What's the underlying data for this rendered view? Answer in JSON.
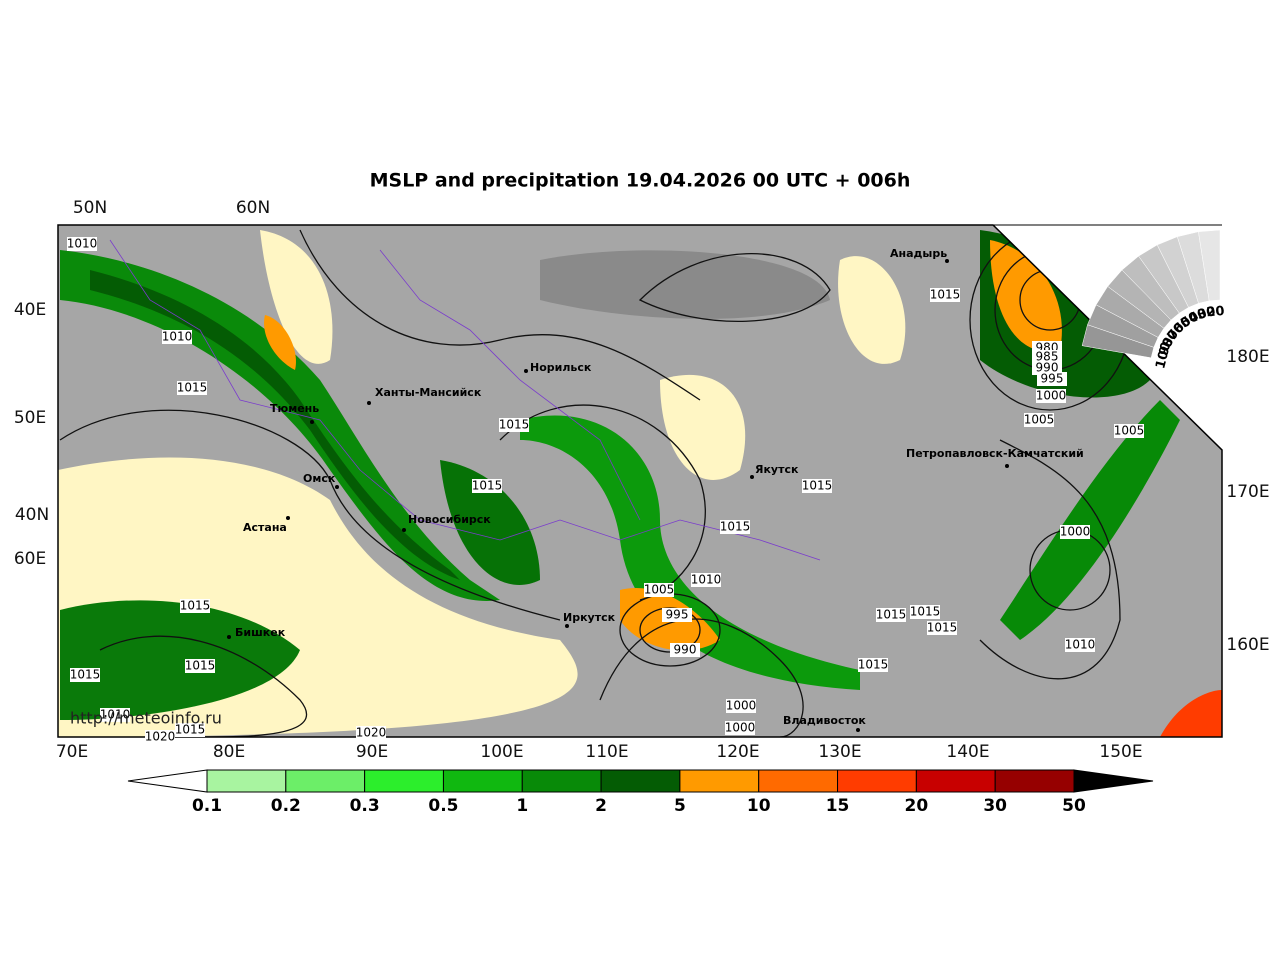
{
  "title": "MSLP and precipitation 19.04.2026 00 UTC + 006h",
  "grid_labels": {
    "top": [
      "50N",
      "60N"
    ],
    "left": [
      "40E",
      "50E",
      "40N",
      "60E"
    ],
    "right": [
      "180E",
      "170E",
      "160E"
    ],
    "bottom": [
      "70E",
      "80E",
      "90E",
      "100E",
      "110E",
      "120E",
      "130E",
      "140E",
      "150E"
    ]
  },
  "cities": [
    "Анадырь",
    "Норильск",
    "Ханты-Мансийск",
    "Тюмень",
    "Омск",
    "Астана",
    "Новосибирск",
    "Якутск",
    "Петропавловск-Камчатский",
    "Иркутск",
    "Бишкек",
    "Владивосток"
  ],
  "isobar_labels": [
    1010,
    1010,
    1015,
    1015,
    1015,
    1015,
    1015,
    1015,
    980,
    985,
    990,
    995,
    1000,
    1005,
    1005,
    1000,
    1010,
    1005,
    1010,
    995,
    990,
    1015,
    1015,
    1015,
    1010,
    1015,
    1020,
    1020,
    1000,
    1000,
    1015,
    1015,
    1015,
    1015
  ],
  "cloud_scale": [
    100,
    90,
    80,
    70,
    60,
    50,
    40,
    30,
    20
  ],
  "colorbar": {
    "levels": [
      0.1,
      0.2,
      0.3,
      0.5,
      1,
      2,
      5,
      10,
      15,
      20,
      30,
      50
    ],
    "colors": [
      "#a8f4a0",
      "#6cee68",
      "#2cee2c",
      "#10b810",
      "#088a08",
      "#045c04",
      "#ff9a00",
      "#ff6a00",
      "#ff3c00",
      "#c80000",
      "#960000"
    ]
  },
  "watermark": "http://meteoinfo.ru"
}
